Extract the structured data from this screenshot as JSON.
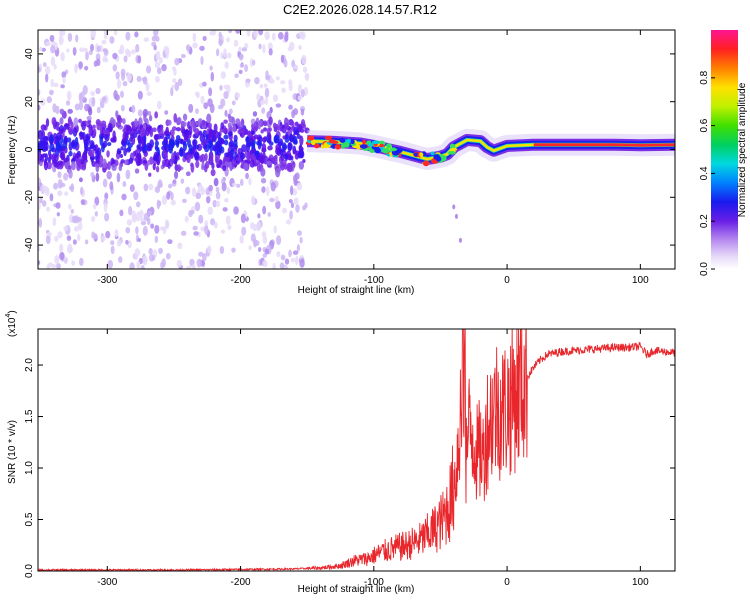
{
  "figure": {
    "title": "C2E2.2026.028.14.57.R12"
  },
  "chart_data": [
    {
      "type": "heatmap",
      "xlabel": "Height of straight line (km)",
      "ylabel": "Frequency (Hz)",
      "xlim": [
        -352,
        126
      ],
      "ylim": [
        -50,
        50
      ],
      "xticks": [
        -300,
        -200,
        -100,
        0,
        100
      ],
      "yticks": [
        -40,
        -20,
        0,
        20,
        40
      ],
      "colorbar": {
        "label": "Normalized spectral amplitude",
        "range": [
          0,
          1
        ],
        "ticks": [
          "0.0",
          "0.2",
          "0.4",
          "0.6",
          "0.8"
        ],
        "colormap": "white-lavender-purple-blue-cyan-green-yellow-orange-red-magenta"
      },
      "ridge_center": [
        {
          "x": -150,
          "y": 3.5
        },
        {
          "x": -130,
          "y": 3.2
        },
        {
          "x": -110,
          "y": 2.5
        },
        {
          "x": -100,
          "y": 1.5
        },
        {
          "x": -90,
          "y": 0.2
        },
        {
          "x": -80,
          "y": -1.0
        },
        {
          "x": -70,
          "y": -2.5
        },
        {
          "x": -60,
          "y": -4.0
        },
        {
          "x": -50,
          "y": -3.0
        },
        {
          "x": -45,
          "y": -2.0
        },
        {
          "x": -40,
          "y": 1.0
        },
        {
          "x": -30,
          "y": 4.0
        },
        {
          "x": -20,
          "y": 3.5
        },
        {
          "x": -15,
          "y": 1.0
        },
        {
          "x": -10,
          "y": -0.5
        },
        {
          "x": 0,
          "y": 1.5
        },
        {
          "x": 20,
          "y": 2.0
        },
        {
          "x": 60,
          "y": 2.0
        },
        {
          "x": 80,
          "y": 2.0
        },
        {
          "x": 100,
          "y": 1.8
        },
        {
          "x": 126,
          "y": 2.0
        }
      ]
    },
    {
      "type": "line",
      "xlabel": "Height of straight line (km)",
      "ylabel": "SNR (10 * v/v)",
      "y_multiplier": "(x10",
      "y_multiplier_exp": "4",
      "y_multiplier_close": ")",
      "xlim": [
        -352,
        126
      ],
      "ylim": [
        0,
        2.35
      ],
      "xticks": [
        -300,
        -200,
        -100,
        0,
        100
      ],
      "yticks": [
        "0.0",
        "0.5",
        "1.0",
        "1.5",
        "2.0"
      ],
      "color": "#e8262b",
      "series": [
        {
          "points": [
            [
              -352,
              0.01
            ],
            [
              -300,
              0.01
            ],
            [
              -250,
              0.01
            ],
            [
              -200,
              0.015
            ],
            [
              -160,
              0.02
            ],
            [
              -140,
              0.03
            ],
            [
              -125,
              0.05
            ],
            [
              -115,
              0.1
            ],
            [
              -105,
              0.12
            ],
            [
              -95,
              0.18
            ],
            [
              -85,
              0.22
            ],
            [
              -75,
              0.25
            ],
            [
              -65,
              0.3
            ],
            [
              -55,
              0.4
            ],
            [
              -48,
              0.5
            ],
            [
              -42,
              0.7
            ],
            [
              -38,
              1.0
            ],
            [
              -35,
              1.5
            ],
            [
              -33,
              2.35
            ],
            [
              -31,
              1.1
            ],
            [
              -28,
              1.4
            ],
            [
              -25,
              1.3
            ],
            [
              -22,
              1.1
            ],
            [
              -20,
              1.2
            ],
            [
              -18,
              1.1
            ],
            [
              -15,
              1.4
            ],
            [
              -12,
              1.5
            ],
            [
              -8,
              1.6
            ],
            [
              -4,
              1.55
            ],
            [
              0,
              1.6
            ],
            [
              5,
              1.7
            ],
            [
              10,
              1.8
            ],
            [
              15,
              1.88
            ],
            [
              20,
              1.98
            ],
            [
              25,
              2.05
            ],
            [
              30,
              2.1
            ],
            [
              40,
              2.13
            ],
            [
              50,
              2.14
            ],
            [
              60,
              2.15
            ],
            [
              70,
              2.16
            ],
            [
              80,
              2.17
            ],
            [
              90,
              2.17
            ],
            [
              100,
              2.18
            ],
            [
              105,
              2.1
            ],
            [
              110,
              2.14
            ],
            [
              126,
              2.12
            ]
          ]
        }
      ]
    }
  ]
}
